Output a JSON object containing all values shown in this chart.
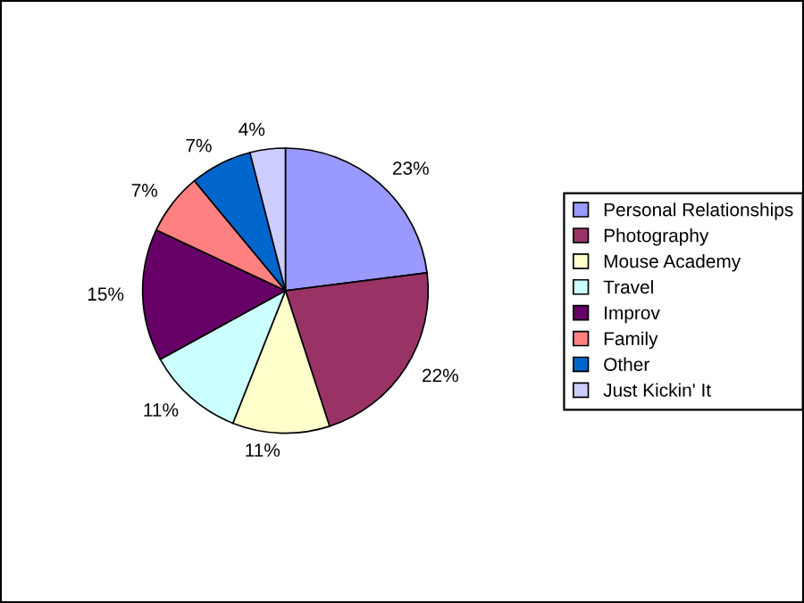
{
  "chart_data": {
    "type": "pie",
    "categories": [
      "Personal Relationships",
      "Photography",
      "Mouse Academy",
      "Travel",
      "Improv",
      "Family",
      "Other",
      "Just Kickin' It"
    ],
    "values": [
      23,
      22,
      11,
      11,
      15,
      7,
      7,
      4
    ],
    "value_labels": [
      "23%",
      "22%",
      "11%",
      "11%",
      "15%",
      "7%",
      "7%",
      "4%"
    ],
    "colors": [
      "#9999ff",
      "#993366",
      "#ffffcc",
      "#ccffff",
      "#660066",
      "#ff8080",
      "#0066cc",
      "#ccccff"
    ],
    "legend": "right"
  }
}
